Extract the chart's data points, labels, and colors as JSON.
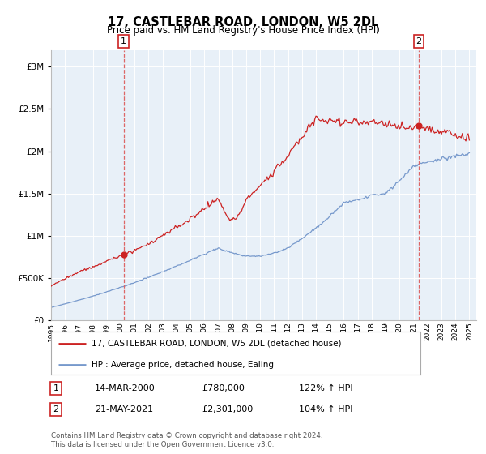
{
  "title": "17, CASTLEBAR ROAD, LONDON, W5 2DL",
  "subtitle": "Price paid vs. HM Land Registry's House Price Index (HPI)",
  "red_label": "17, CASTLEBAR ROAD, LONDON, W5 2DL (detached house)",
  "blue_label": "HPI: Average price, detached house, Ealing",
  "footnote": "Contains HM Land Registry data © Crown copyright and database right 2024.\nThis data is licensed under the Open Government Licence v3.0.",
  "annotation1_label": "1",
  "annotation1_date": "14-MAR-2000",
  "annotation1_price": "£780,000",
  "annotation1_hpi": "122% ↑ HPI",
  "annotation1_year": 2000.21,
  "annotation1_value": 780000,
  "annotation2_label": "2",
  "annotation2_date": "21-MAY-2021",
  "annotation2_price": "£2,301,000",
  "annotation2_hpi": "104% ↑ HPI",
  "annotation2_year": 2021.38,
  "annotation2_value": 2301000,
  "start_year": 1995,
  "end_year": 2025,
  "ylim_max": 3200000,
  "plot_bg": "#e8f0f8",
  "red_color": "#cc2222",
  "blue_color": "#7799cc",
  "grid_color": "#ffffff",
  "dashed_color": "#dd6666"
}
